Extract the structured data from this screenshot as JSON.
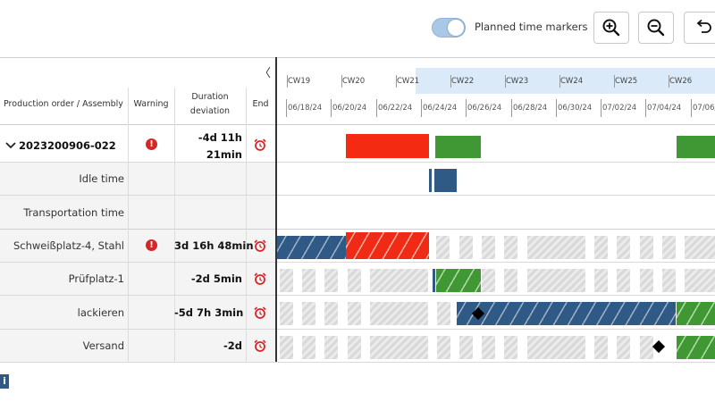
{
  "toolbar": {
    "toggle_label": "Planned time markers",
    "toggle_on": true,
    "zoom_in_icon": "zoom-in-icon",
    "zoom_out_icon": "zoom-out-icon",
    "undo_icon": "undo-icon"
  },
  "table": {
    "collapse_glyph": "〈",
    "headers": {
      "order": "Production order / Assembly",
      "warning": "Warning",
      "duration_line1": "Duration",
      "duration_line2": "deviation",
      "end": "End"
    },
    "rows": [
      {
        "name": "2023200906-022",
        "warning": true,
        "deviation_line1": "-4d 11h",
        "deviation_line2": "21min",
        "end_icon": "alarm-clock-icon"
      },
      {
        "name": "Idle time"
      },
      {
        "name": "Transportation time"
      },
      {
        "name": "Schweißplatz-4, Stahl",
        "warning": true,
        "deviation": "3d 16h 48min",
        "end_icon": "alarm-clock-icon"
      },
      {
        "name": "Prüfplatz-1",
        "deviation": "-2d 5min",
        "end_icon": "alarm-clock-icon"
      },
      {
        "name": "lackieren",
        "deviation": "-5d 7h 3min",
        "end_icon": "alarm-clock-icon"
      },
      {
        "name": "Versand",
        "deviation": "-2d",
        "end_icon": "alarm-clock-icon"
      }
    ]
  },
  "gantt": {
    "weeks": [
      "CW19",
      "CW20",
      "CW21",
      "CW22",
      "CW23",
      "CW24",
      "CW25",
      "CW26"
    ],
    "dates": [
      "06/18/24",
      "06/20/24",
      "06/22/24",
      "06/24/24",
      "06/26/24",
      "06/28/24",
      "06/30/24",
      "07/02/24",
      "07/04/24",
      "07/06/"
    ]
  },
  "colors": {
    "late": "#f52a12",
    "on_time": "#3f9834",
    "idle": "#2e5a85",
    "highlight": "#daeaf8"
  },
  "footer": {
    "info_glyph": "i"
  }
}
